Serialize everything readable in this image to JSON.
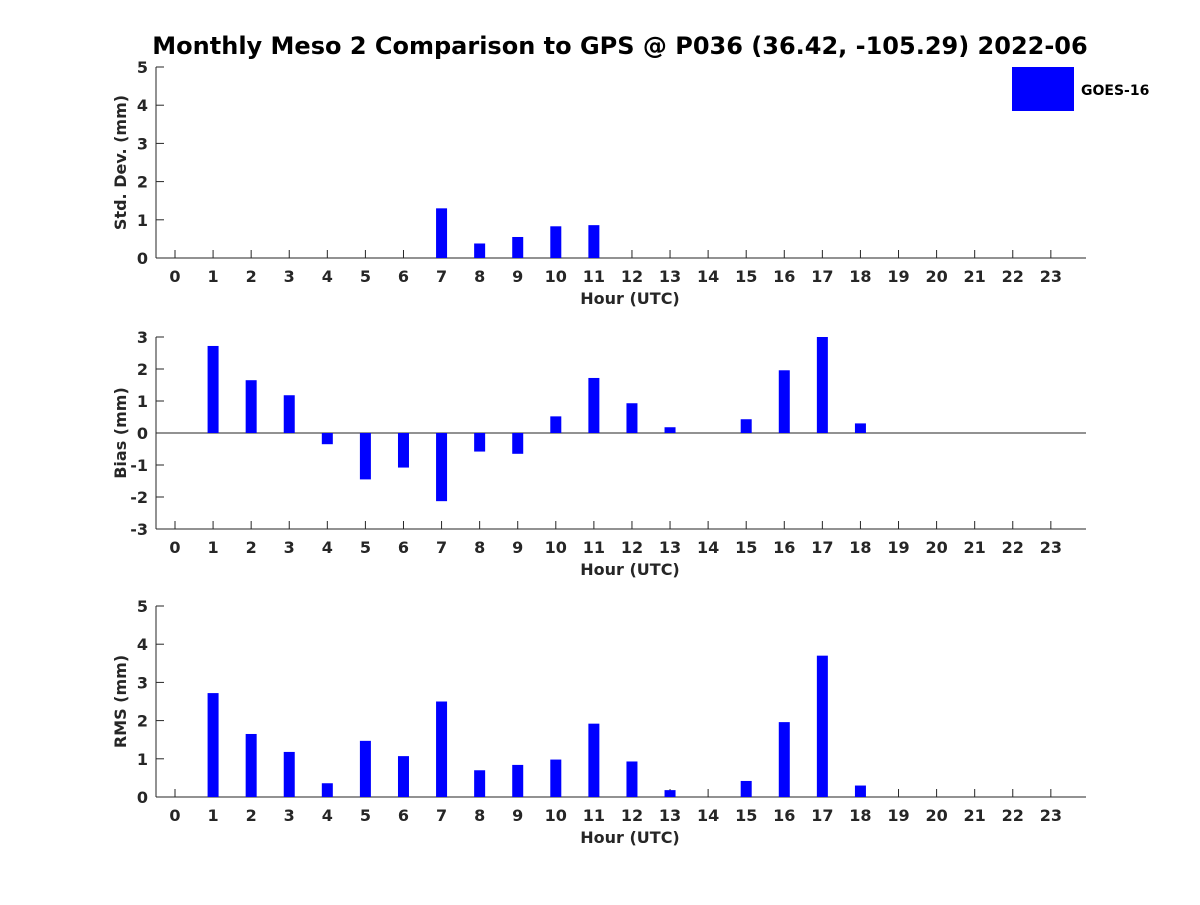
{
  "figure_title": "Monthly Meso 2 Comparison to GPS @ P036 (36.42, -105.29) 2022-06",
  "legend": {
    "label": "GOES-16",
    "color": "#0000ff",
    "placement": "top-right"
  },
  "colors": {
    "bar": "#0000ff",
    "axis": "#262626",
    "title": "#000000"
  },
  "chart_data": [
    {
      "type": "bar",
      "ylabel": "Std. Dev. (mm)",
      "xlabel": "Hour (UTC)",
      "ylim": [
        0,
        5
      ],
      "yticks": [
        "0",
        "1",
        "2",
        "3",
        "4",
        "5"
      ],
      "categories": [
        "0",
        "1",
        "2",
        "3",
        "4",
        "5",
        "6",
        "7",
        "8",
        "9",
        "10",
        "11",
        "12",
        "13",
        "14",
        "15",
        "16",
        "17",
        "18",
        "19",
        "20",
        "21",
        "22",
        "23"
      ],
      "series": [
        {
          "name": "GOES-16",
          "values": [
            null,
            null,
            null,
            null,
            null,
            null,
            null,
            1.3,
            0.38,
            0.55,
            0.83,
            0.86,
            null,
            null,
            null,
            null,
            null,
            null,
            null,
            null,
            null,
            null,
            null,
            null
          ]
        }
      ]
    },
    {
      "type": "bar",
      "ylabel": "Bias (mm)",
      "xlabel": "Hour (UTC)",
      "ylim": [
        -3,
        3
      ],
      "yticks": [
        "-3",
        "-2",
        "-1",
        "0",
        "1",
        "2",
        "3"
      ],
      "zero_line": true,
      "categories": [
        "0",
        "1",
        "2",
        "3",
        "4",
        "5",
        "6",
        "7",
        "8",
        "9",
        "10",
        "11",
        "12",
        "13",
        "14",
        "15",
        "16",
        "17",
        "18",
        "19",
        "20",
        "21",
        "22",
        "23"
      ],
      "series": [
        {
          "name": "GOES-16",
          "values": [
            null,
            2.72,
            1.65,
            1.18,
            -0.35,
            -1.45,
            -1.08,
            -2.13,
            -0.58,
            -0.65,
            0.52,
            1.72,
            0.93,
            0.18,
            null,
            0.43,
            1.96,
            3.0,
            0.3,
            null,
            null,
            null,
            null,
            null
          ]
        }
      ]
    },
    {
      "type": "bar",
      "ylabel": "RMS (mm)",
      "xlabel": "Hour (UTC)",
      "ylim": [
        0,
        5
      ],
      "yticks": [
        "0",
        "1",
        "2",
        "3",
        "4",
        "5"
      ],
      "categories": [
        "0",
        "1",
        "2",
        "3",
        "4",
        "5",
        "6",
        "7",
        "8",
        "9",
        "10",
        "11",
        "12",
        "13",
        "14",
        "15",
        "16",
        "17",
        "18",
        "19",
        "20",
        "21",
        "22",
        "23"
      ],
      "series": [
        {
          "name": "GOES-16",
          "values": [
            null,
            2.72,
            1.65,
            1.18,
            0.36,
            1.47,
            1.07,
            2.5,
            0.7,
            0.84,
            0.98,
            1.92,
            0.93,
            0.18,
            null,
            0.42,
            1.96,
            3.7,
            0.3,
            null,
            null,
            null,
            null,
            null
          ]
        }
      ]
    }
  ]
}
